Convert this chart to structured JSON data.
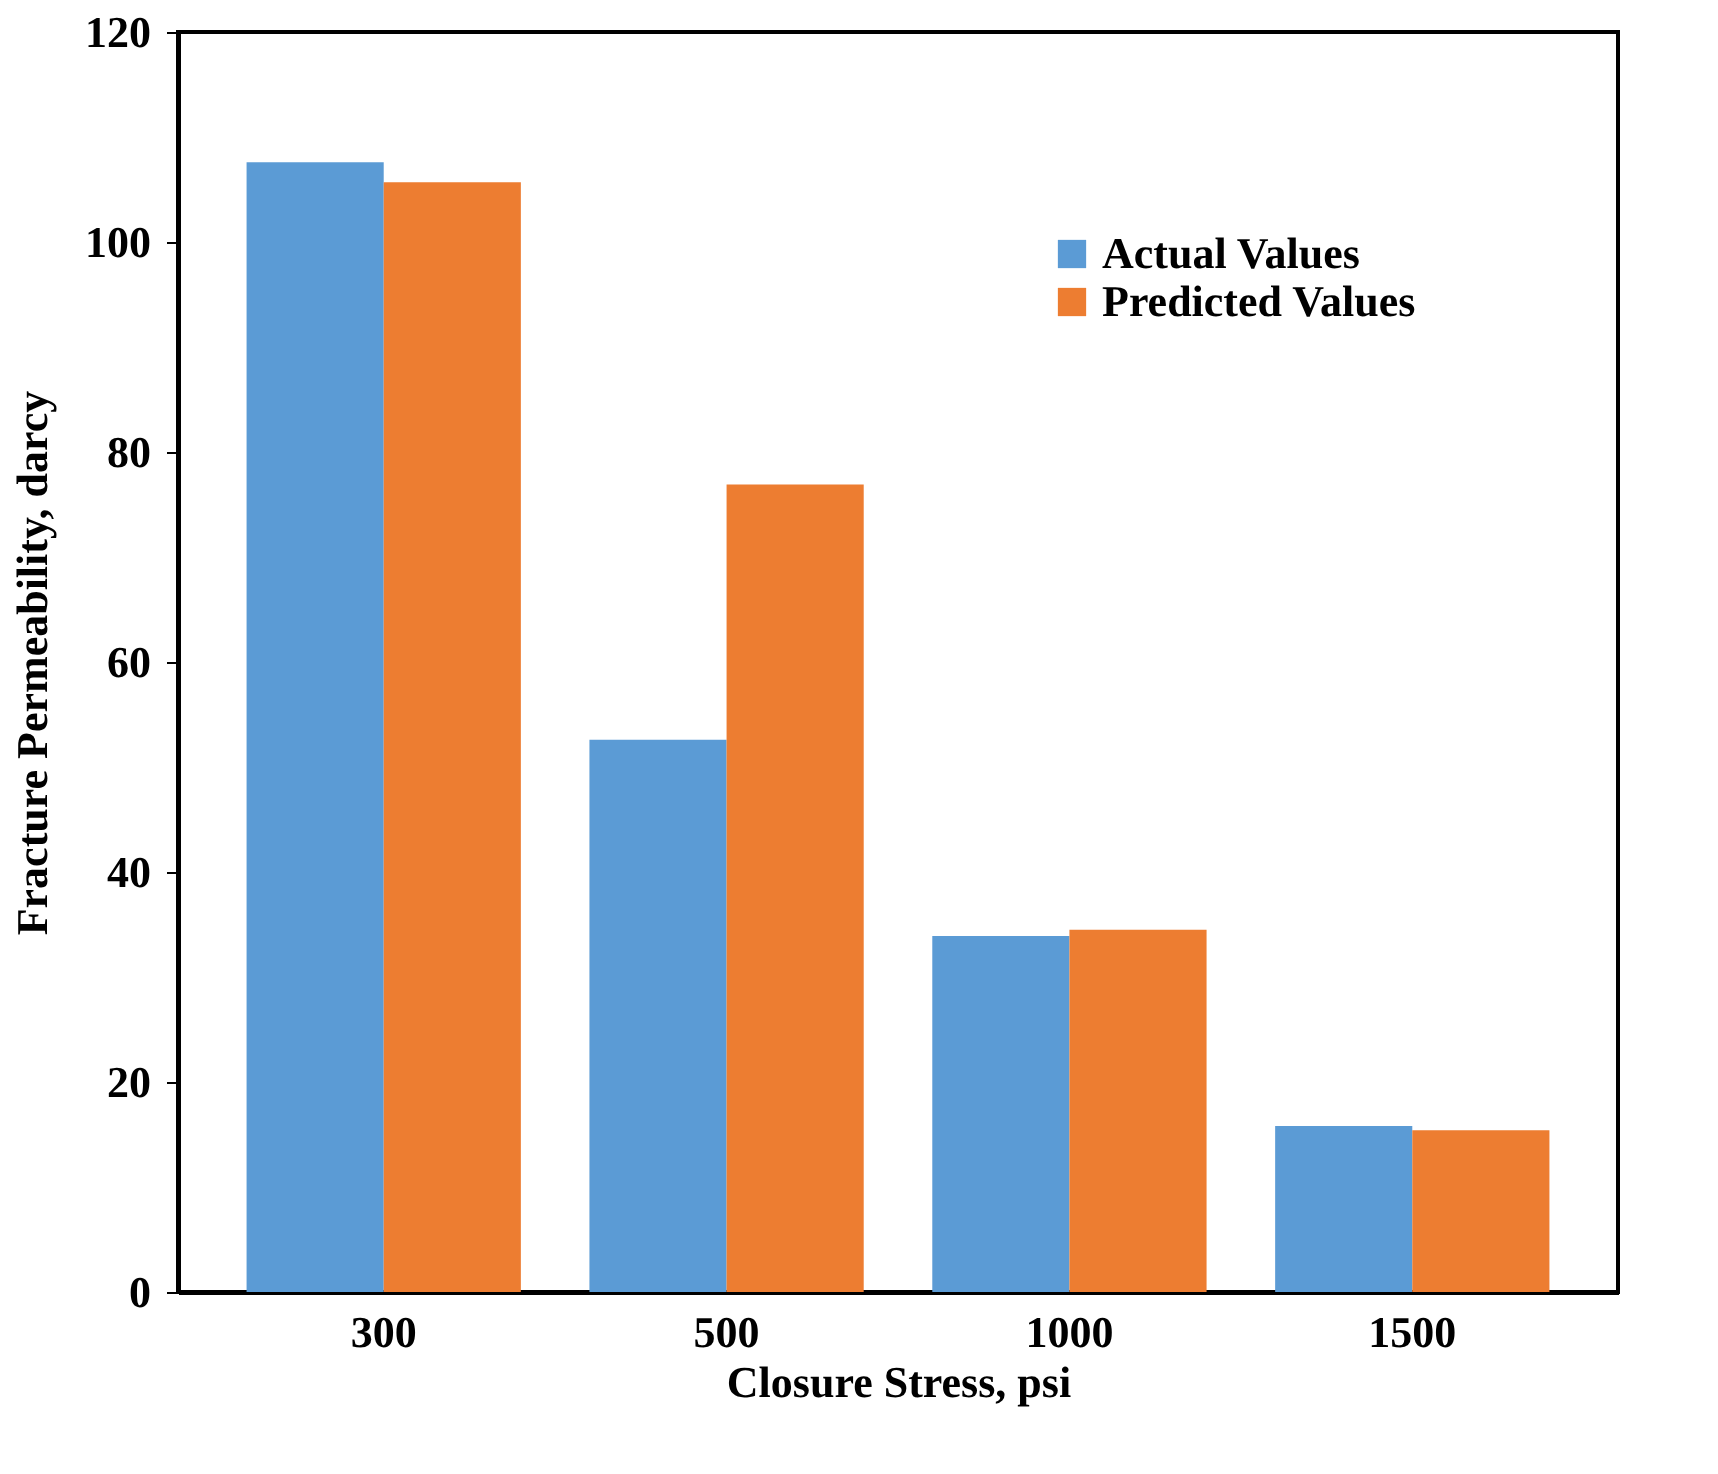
{
  "chart_data": {
    "type": "bar",
    "xlabel": "Closure Stress, psi",
    "ylabel": "Fracture Permeability, darcy",
    "categories": [
      "300",
      "500",
      "1000",
      "1500"
    ],
    "series": [
      {
        "name": "Actual Values",
        "color": "#5b9bd5",
        "values": [
          107.6,
          52.6,
          33.9,
          15.8
        ]
      },
      {
        "name": "Predicted Values",
        "color": "#ed7d31",
        "values": [
          105.7,
          76.9,
          34.5,
          15.4
        ]
      }
    ],
    "ylim": [
      0,
      120
    ],
    "yticks": [
      0,
      20,
      40,
      60,
      80,
      100,
      120
    ],
    "grid": false,
    "legend": "top right"
  }
}
